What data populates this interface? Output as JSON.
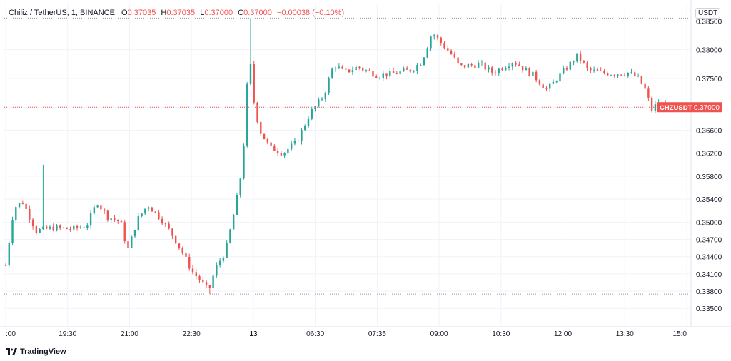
{
  "legend": {
    "symbol": "Chiliz / TetherUS, 1, BINANCE",
    "o_label": "O",
    "o_value": "0.37035",
    "h_label": "H",
    "h_value": "0.37035",
    "l_label": "L",
    "l_value": "0.37000",
    "c_label": "C",
    "c_value": "0.37000",
    "change": "−0.00038 (−0.10%)"
  },
  "currency_badge": "USDT",
  "price_tag": {
    "label": "CHZUSDT",
    "value": "0.37000"
  },
  "brand": {
    "name": "TradingView"
  },
  "colors": {
    "up": "#26a69a",
    "down": "#ef5350",
    "grid": "#f0f3fa",
    "hline": "#9598a1",
    "last_price": "#ef5350",
    "text": "#131722"
  },
  "chart_data": {
    "type": "candlestick",
    "title": "Chiliz / TetherUS, 1, BINANCE",
    "ylabel": "USDT",
    "ylim": [
      0.3318,
      0.3879
    ],
    "y_ticks": [
      "0.38500",
      "0.38000",
      "0.37500",
      "0.37000",
      "0.36600",
      "0.36200",
      "0.35800",
      "0.35400",
      "0.35000",
      "0.34700",
      "0.34400",
      "0.34100",
      "0.33800",
      "0.33500"
    ],
    "x_ticks": [
      ":00",
      "19:30",
      "21:00",
      "22:30",
      "13",
      "06:30",
      "07:35",
      "09:00",
      "10:30",
      "12:00",
      "13:30",
      "15:0"
    ],
    "last_price": 0.37,
    "session_high": 0.3855,
    "session_low": 0.3375,
    "price_path": [
      [
        0,
        0.3425
      ],
      [
        0.012,
        0.3525
      ],
      [
        0.025,
        0.3535
      ],
      [
        0.045,
        0.3485
      ],
      [
        0.07,
        0.349
      ],
      [
        0.1,
        0.3488
      ],
      [
        0.12,
        0.3495
      ],
      [
        0.135,
        0.3535
      ],
      [
        0.15,
        0.351
      ],
      [
        0.17,
        0.35
      ],
      [
        0.18,
        0.345
      ],
      [
        0.195,
        0.3505
      ],
      [
        0.21,
        0.353
      ],
      [
        0.23,
        0.3505
      ],
      [
        0.245,
        0.348
      ],
      [
        0.26,
        0.345
      ],
      [
        0.275,
        0.3415
      ],
      [
        0.29,
        0.3395
      ],
      [
        0.3,
        0.338
      ],
      [
        0.31,
        0.342
      ],
      [
        0.325,
        0.345
      ],
      [
        0.34,
        0.353
      ],
      [
        0.35,
        0.36
      ],
      [
        0.36,
        0.38
      ],
      [
        0.365,
        0.372
      ],
      [
        0.375,
        0.366
      ],
      [
        0.39,
        0.363
      ],
      [
        0.41,
        0.362
      ],
      [
        0.43,
        0.364
      ],
      [
        0.45,
        0.369
      ],
      [
        0.47,
        0.372
      ],
      [
        0.485,
        0.3775
      ],
      [
        0.5,
        0.376
      ],
      [
        0.52,
        0.377
      ],
      [
        0.55,
        0.3755
      ],
      [
        0.58,
        0.376
      ],
      [
        0.6,
        0.3765
      ],
      [
        0.615,
        0.378
      ],
      [
        0.63,
        0.383
      ],
      [
        0.645,
        0.381
      ],
      [
        0.66,
        0.379
      ],
      [
        0.67,
        0.377
      ],
      [
        0.7,
        0.3775
      ],
      [
        0.72,
        0.376
      ],
      [
        0.75,
        0.378
      ],
      [
        0.78,
        0.3755
      ],
      [
        0.8,
        0.373
      ],
      [
        0.815,
        0.375
      ],
      [
        0.83,
        0.377
      ],
      [
        0.845,
        0.379
      ],
      [
        0.86,
        0.3765
      ],
      [
        0.88,
        0.376
      ],
      [
        0.9,
        0.3758
      ],
      [
        0.92,
        0.376
      ],
      [
        0.935,
        0.375
      ],
      [
        0.945,
        0.373
      ],
      [
        0.955,
        0.3695
      ],
      [
        0.965,
        0.371
      ],
      [
        0.975,
        0.3702
      ],
      [
        1.0,
        0.37
      ]
    ],
    "candle_count": 200
  }
}
